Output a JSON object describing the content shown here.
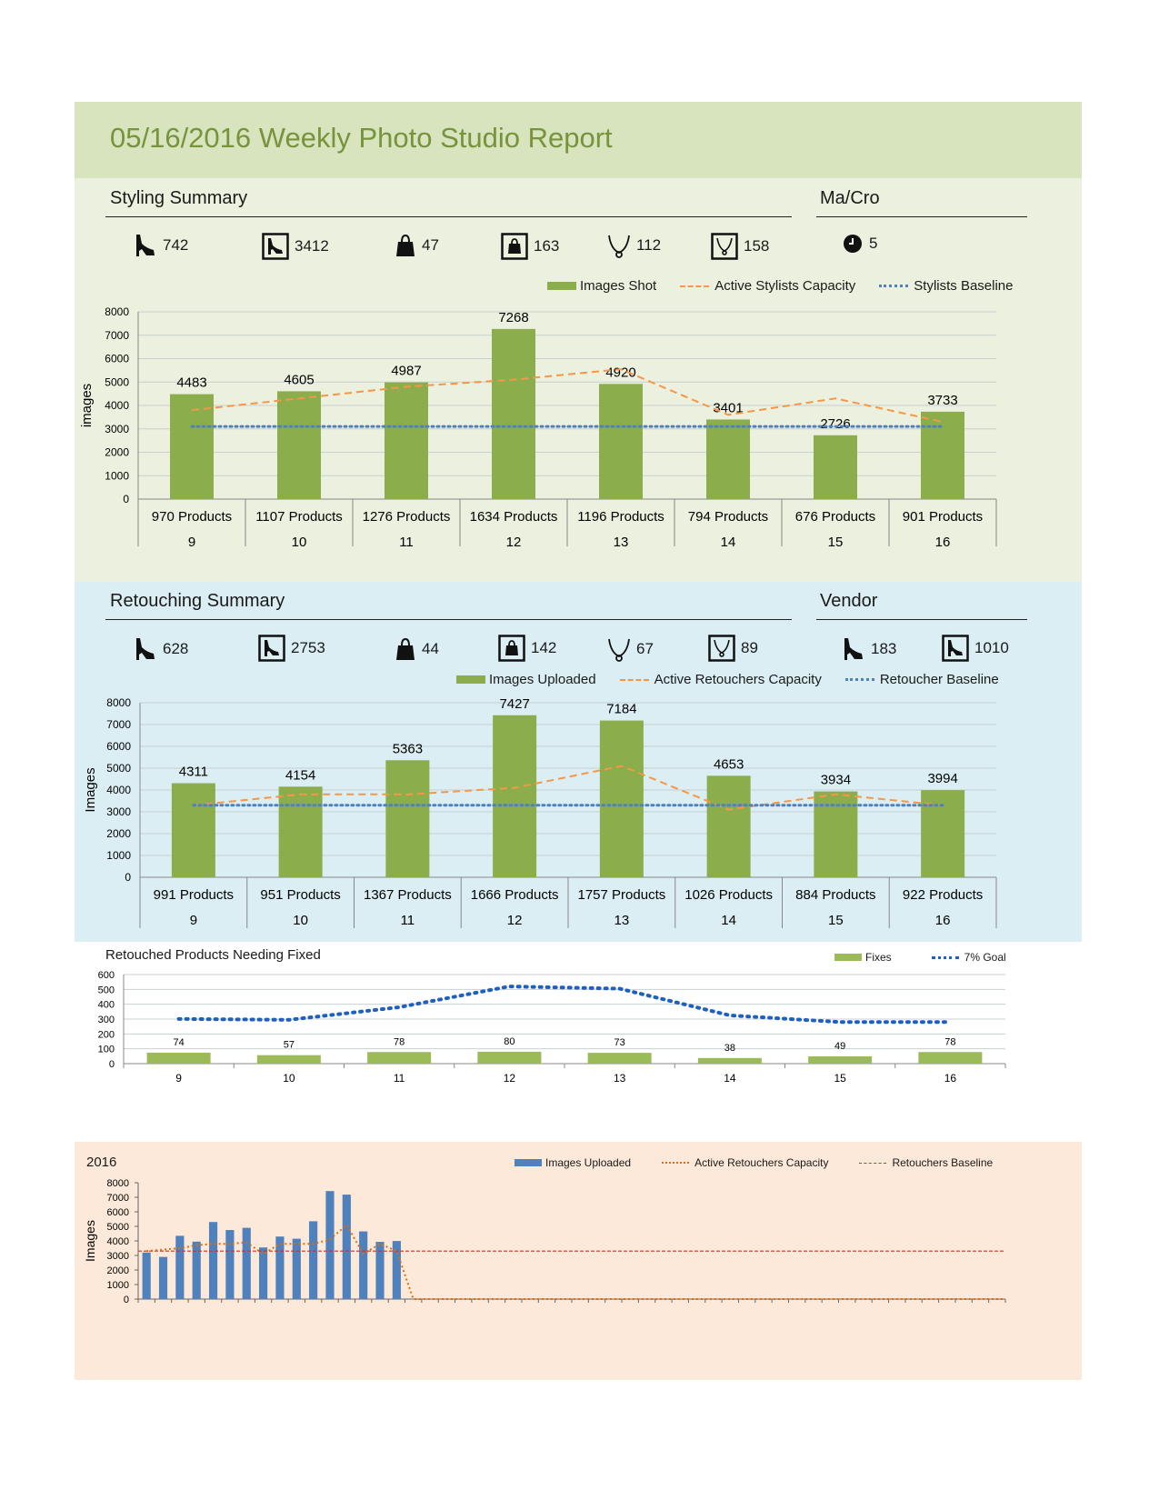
{
  "report": {
    "title": "05/16/2016 Weekly Photo Studio Report"
  },
  "styling": {
    "title": "Styling Summary",
    "stats": [
      {
        "icon": "shoe-icon",
        "value": "742"
      },
      {
        "icon": "framed-shoe-icon",
        "value": "3412"
      },
      {
        "icon": "bag-icon",
        "value": "47"
      },
      {
        "icon": "framed-bag-icon",
        "value": "163"
      },
      {
        "icon": "necklace-icon",
        "value": "112"
      },
      {
        "icon": "framed-necklace-icon",
        "value": "158"
      }
    ]
  },
  "macro": {
    "title": "Ma/Cro",
    "stats": [
      {
        "icon": "clock-icon",
        "value": "5"
      }
    ]
  },
  "retouching": {
    "title": "Retouching Summary",
    "stats": [
      {
        "icon": "shoe-icon",
        "value": "628"
      },
      {
        "icon": "framed-shoe-icon",
        "value": "2753"
      },
      {
        "icon": "bag-icon",
        "value": "44"
      },
      {
        "icon": "framed-bag-icon",
        "value": "142"
      },
      {
        "icon": "necklace-icon",
        "value": "67"
      },
      {
        "icon": "framed-necklace-icon",
        "value": "89"
      }
    ]
  },
  "vendor": {
    "title": "Vendor",
    "stats": [
      {
        "icon": "shoe-icon",
        "value": "183"
      },
      {
        "icon": "framed-shoe-icon",
        "value": "1010"
      }
    ]
  },
  "colors": {
    "bar_green": "#8cad4b",
    "fix_green": "#9bbb59",
    "capacity_orange": "#f79646",
    "baseline_blue": "#4f81bd",
    "bar_blue": "#4f81bd",
    "baseline_red": "#c0392b",
    "grid": "#c8d0d0"
  },
  "chart_data": [
    {
      "type": "bar",
      "name": "styling",
      "ylabel": "images",
      "ylim": [
        0,
        8000
      ],
      "yticks": [
        "0",
        "1000",
        "2000",
        "3000",
        "4000",
        "5000",
        "6000",
        "7000",
        "8000"
      ],
      "categories": [
        "9",
        "10",
        "11",
        "12",
        "13",
        "14",
        "15",
        "16"
      ],
      "subcategories": [
        "970 Products",
        "1107 Products",
        "1276 Products",
        "1634 Products",
        "1196 Products",
        "794 Products",
        "676 Products",
        "901 Products"
      ],
      "series": [
        {
          "name": "Images Shot",
          "kind": "bar",
          "values": [
            4483,
            4605,
            4987,
            7268,
            4920,
            3401,
            2726,
            3733
          ],
          "labels": [
            "4483",
            "4605",
            "4987",
            "7268",
            "4920",
            "3401",
            "2726",
            "3733"
          ]
        },
        {
          "name": "Active Stylists Capacity",
          "kind": "dashed-line",
          "values": [
            3800,
            4300,
            4800,
            5100,
            5550,
            3600,
            4300,
            3300
          ]
        },
        {
          "name": "Stylists Baseline",
          "kind": "dotted-line",
          "values": [
            3100,
            3100,
            3100,
            3100,
            3100,
            3100,
            3100,
            3100
          ]
        }
      ],
      "legend": "top-right"
    },
    {
      "type": "bar",
      "name": "retouching",
      "ylabel": "Images",
      "ylim": [
        0,
        8000
      ],
      "yticks": [
        "0",
        "1000",
        "2000",
        "3000",
        "4000",
        "5000",
        "6000",
        "7000",
        "8000"
      ],
      "categories": [
        "9",
        "10",
        "11",
        "12",
        "13",
        "14",
        "15",
        "16"
      ],
      "subcategories": [
        "991 Products",
        "951 Products",
        "1367 Products",
        "1666 Products",
        "1757 Products",
        "1026 Products",
        "884 Products",
        "922 Products"
      ],
      "series": [
        {
          "name": "Images Uploaded",
          "kind": "bar",
          "values": [
            4311,
            4154,
            5363,
            7427,
            7184,
            4653,
            3934,
            3994
          ],
          "labels": [
            "4311",
            "4154",
            "5363",
            "7427",
            "7184",
            "4653",
            "3934",
            "3994"
          ]
        },
        {
          "name": "Active Retouchers Capacity",
          "kind": "dashed-line",
          "values": [
            3300,
            3800,
            3800,
            4100,
            5100,
            3100,
            3800,
            3300
          ]
        },
        {
          "name": "Retoucher Baseline",
          "kind": "dotted-line",
          "values": [
            3300,
            3300,
            3300,
            3300,
            3300,
            3300,
            3300,
            3300
          ]
        }
      ],
      "legend": "top-right"
    },
    {
      "type": "bar",
      "name": "fixes",
      "title": "Retouched Products Needing Fixed",
      "ylim": [
        0,
        600
      ],
      "yticks": [
        "0",
        "100",
        "200",
        "300",
        "400",
        "500",
        "600"
      ],
      "categories": [
        "9",
        "10",
        "11",
        "12",
        "13",
        "14",
        "15",
        "16"
      ],
      "series": [
        {
          "name": "Fixes",
          "kind": "bar",
          "values": [
            74,
            57,
            78,
            80,
            73,
            38,
            49,
            78
          ],
          "labels": [
            "74",
            "57",
            "78",
            "80",
            "73",
            "38",
            "49",
            "78"
          ]
        },
        {
          "name": "7% Goal",
          "kind": "dotted-line",
          "values": [
            301,
            295,
            380,
            520,
            505,
            325,
            280,
            280
          ]
        }
      ],
      "legend": "top-right"
    },
    {
      "type": "bar",
      "name": "year",
      "title": "2016",
      "ylabel": "Images",
      "ylim": [
        0,
        8000
      ],
      "yticks": [
        "0",
        "1000",
        "2000",
        "3000",
        "4000",
        "5000",
        "6000",
        "7000",
        "8000"
      ],
      "week_count": 52,
      "series": [
        {
          "name": "Images Uploaded",
          "kind": "bar",
          "values": [
            3200,
            2900,
            4350,
            3950,
            5300,
            4750,
            4900,
            3550,
            4300,
            4150,
            5350,
            7427,
            7184,
            4653,
            3934,
            3994
          ]
        },
        {
          "name": "Active Retouchers Capacity",
          "kind": "dotted-line",
          "values": [
            3300,
            3400,
            3500,
            3700,
            3800,
            3800,
            3900,
            3100,
            3800,
            3800,
            3800,
            4100,
            5100,
            3100,
            3800,
            3300,
            0,
            0
          ]
        },
        {
          "name": "Retouchers Baseline",
          "kind": "dashed-line",
          "values": [
            3300
          ]
        }
      ],
      "legend": "top-right"
    }
  ]
}
